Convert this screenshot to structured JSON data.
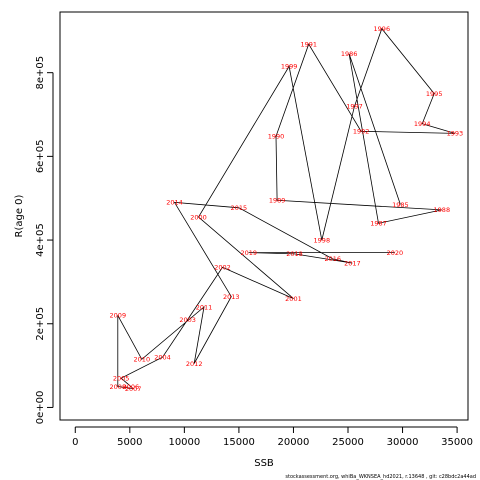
{
  "chart_data": {
    "type": "scatter",
    "xlabel": "SSB",
    "ylabel": "R(age 0)",
    "xlim": [
      -1400,
      36000
    ],
    "ylim": [
      -30000,
      945000
    ],
    "x_ticks": [
      0,
      5000,
      10000,
      15000,
      20000,
      25000,
      30000,
      35000
    ],
    "x_tick_labels": [
      "0",
      "5000",
      "10000",
      "15000",
      "20000",
      "25000",
      "30000",
      "35000"
    ],
    "y_ticks": [
      0,
      200000,
      400000,
      600000,
      800000
    ],
    "y_tick_labels": [
      "0e+00",
      "2e+05",
      "4e+05",
      "6e+05",
      "8e+05"
    ],
    "line_color": "#000000",
    "label_color": "#ff0000",
    "grid": false,
    "points": [
      {
        "year": "1985",
        "x": 29800,
        "y": 485000
      },
      {
        "year": "1986",
        "x": 25100,
        "y": 845000
      },
      {
        "year": "1987",
        "x": 27800,
        "y": 440000
      },
      {
        "year": "1988",
        "x": 33600,
        "y": 472000
      },
      {
        "year": "1989",
        "x": 18500,
        "y": 495000
      },
      {
        "year": "1990",
        "x": 18400,
        "y": 648000
      },
      {
        "year": "1991",
        "x": 21400,
        "y": 868000
      },
      {
        "year": "1992",
        "x": 26200,
        "y": 660000
      },
      {
        "year": "1993",
        "x": 34800,
        "y": 655000
      },
      {
        "year": "1994",
        "x": 31800,
        "y": 678000
      },
      {
        "year": "1995",
        "x": 32900,
        "y": 750000
      },
      {
        "year": "1996",
        "x": 28100,
        "y": 905000
      },
      {
        "year": "1997",
        "x": 25600,
        "y": 720000
      },
      {
        "year": "1998",
        "x": 22600,
        "y": 400000
      },
      {
        "year": "1999",
        "x": 19600,
        "y": 815000
      },
      {
        "year": "2000",
        "x": 11300,
        "y": 455000
      },
      {
        "year": "2001",
        "x": 20000,
        "y": 260000
      },
      {
        "year": "2002",
        "x": 13500,
        "y": 335000
      },
      {
        "year": "2003",
        "x": 10300,
        "y": 210000
      },
      {
        "year": "2004",
        "x": 8000,
        "y": 120000
      },
      {
        "year": "2005",
        "x": 4200,
        "y": 70000
      },
      {
        "year": "2006",
        "x": 5100,
        "y": 50000
      },
      {
        "year": "2007",
        "x": 5300,
        "y": 45000
      },
      {
        "year": "2008",
        "x": 3900,
        "y": 50000
      },
      {
        "year": "2009",
        "x": 3900,
        "y": 220000
      },
      {
        "year": "2010",
        "x": 6100,
        "y": 115000
      },
      {
        "year": "2011",
        "x": 11800,
        "y": 240000
      },
      {
        "year": "2012",
        "x": 10900,
        "y": 105000
      },
      {
        "year": "2013",
        "x": 14300,
        "y": 265000
      },
      {
        "year": "2014",
        "x": 9100,
        "y": 490000
      },
      {
        "year": "2015",
        "x": 15000,
        "y": 477000
      },
      {
        "year": "2016",
        "x": 23600,
        "y": 355000
      },
      {
        "year": "2017",
        "x": 25400,
        "y": 345000
      },
      {
        "year": "2018",
        "x": 20100,
        "y": 367000
      },
      {
        "year": "2019",
        "x": 15900,
        "y": 370000
      },
      {
        "year": "2020",
        "x": 29300,
        "y": 370000
      }
    ]
  },
  "footer": "stockassessment.org,  whiBa_WKNSEA_hd2021,  r.13648 ,  git:  c28bdc2a44ad"
}
